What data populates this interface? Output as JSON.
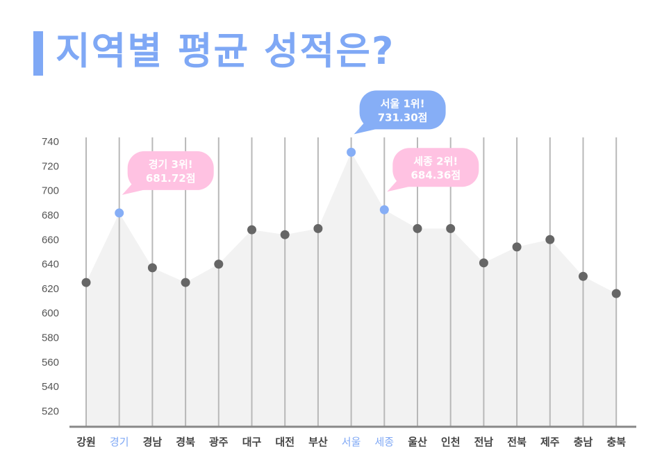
{
  "title": "지역별 평균 성적은?",
  "colors": {
    "accent": "#7fa8f5",
    "highlight_pink": "#ffc2e2",
    "highlight_blue": "#86aef6",
    "area": "#f2f2f2",
    "point": "#666666",
    "gridline": "#b8b8b8",
    "baseline": "#888888"
  },
  "chart_data": {
    "type": "area",
    "categories": [
      "강원",
      "경기",
      "경남",
      "경북",
      "광주",
      "대구",
      "대전",
      "부산",
      "서울",
      "세종",
      "울산",
      "인천",
      "전남",
      "전북",
      "제주",
      "충남",
      "충북"
    ],
    "values": [
      625,
      681.72,
      637,
      625,
      640,
      668,
      664,
      669,
      731.3,
      684.36,
      669,
      669,
      641,
      654,
      660,
      630,
      616
    ],
    "highlighted": [
      "경기",
      "서울",
      "세종"
    ],
    "ylim": [
      510,
      740
    ],
    "yticks": [
      520,
      540,
      560,
      580,
      600,
      620,
      640,
      660,
      680,
      700,
      720,
      740
    ],
    "annotations": [
      {
        "category": "서울",
        "line1": "서울 1위!",
        "line2": "731.30점",
        "color": "blue"
      },
      {
        "category": "세종",
        "line1": "세종 2위!",
        "line2": "684.36점",
        "color": "pink"
      },
      {
        "category": "경기",
        "line1": "경기 3위!",
        "line2": "681.72점",
        "color": "pink"
      }
    ],
    "grid": "vertical",
    "legend": "none"
  }
}
